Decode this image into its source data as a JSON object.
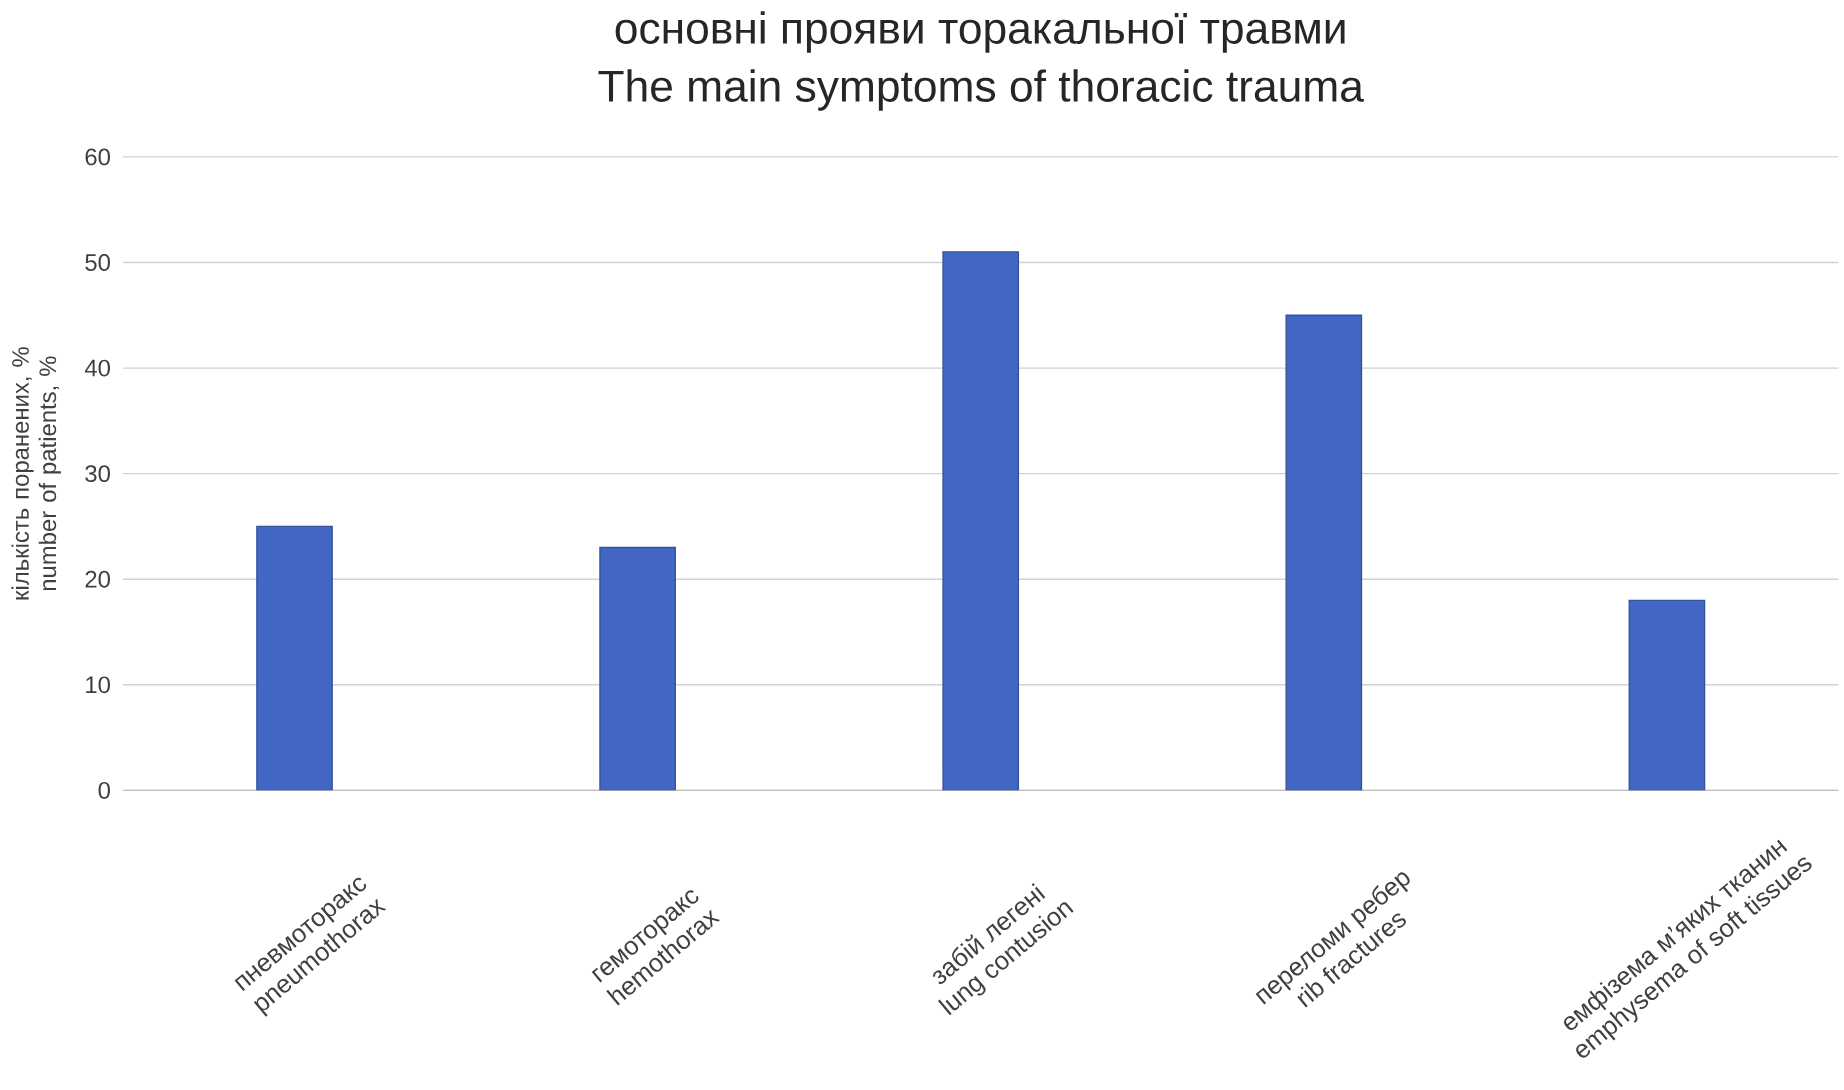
{
  "chart_data": {
    "type": "bar",
    "title": "основні прояви торакальної травми",
    "subtitle": "The main symptoms of thoracic trauma",
    "ylabel": "кількість поранених, % number of patients, %",
    "categories": [
      "пневмоторакс pneumothorax",
      "гемоторакс hemothorax",
      "забій легені lung contusion",
      "переломи ребер rib fractures",
      "емфізема м’яких тканин emphysema of soft tissues"
    ],
    "values": [
      25,
      23,
      51,
      45,
      18
    ],
    "color": "#4166c4",
    "ylim": [
      0,
      60
    ],
    "yticks": [
      0,
      10,
      20,
      30,
      40,
      50,
      60
    ],
    "grid": "y"
  }
}
